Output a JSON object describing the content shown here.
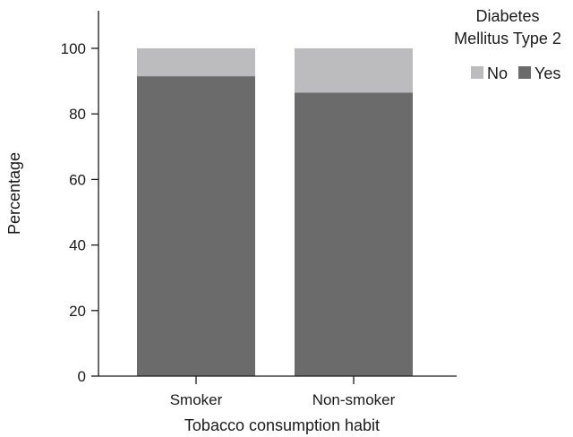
{
  "chart_data": {
    "type": "bar",
    "stacked": true,
    "categories": [
      "Smoker",
      "Non-smoker"
    ],
    "series": [
      {
        "name": "Yes",
        "values": [
          91.5,
          86.5
        ],
        "color": "#6b6b6b"
      },
      {
        "name": "No",
        "values": [
          8.5,
          13.5
        ],
        "color": "#bcbcbe"
      }
    ],
    "xlabel": "Tobacco consumption habit",
    "ylabel": "Percentage",
    "ylim": [
      0,
      114
    ],
    "yticks": [
      0,
      20,
      40,
      60,
      80,
      100
    ],
    "grid": false,
    "legend": {
      "title_lines": [
        "Diabetes",
        "Mellitus Type 2"
      ],
      "order": [
        "No",
        "Yes"
      ],
      "placement": "top-right"
    }
  }
}
